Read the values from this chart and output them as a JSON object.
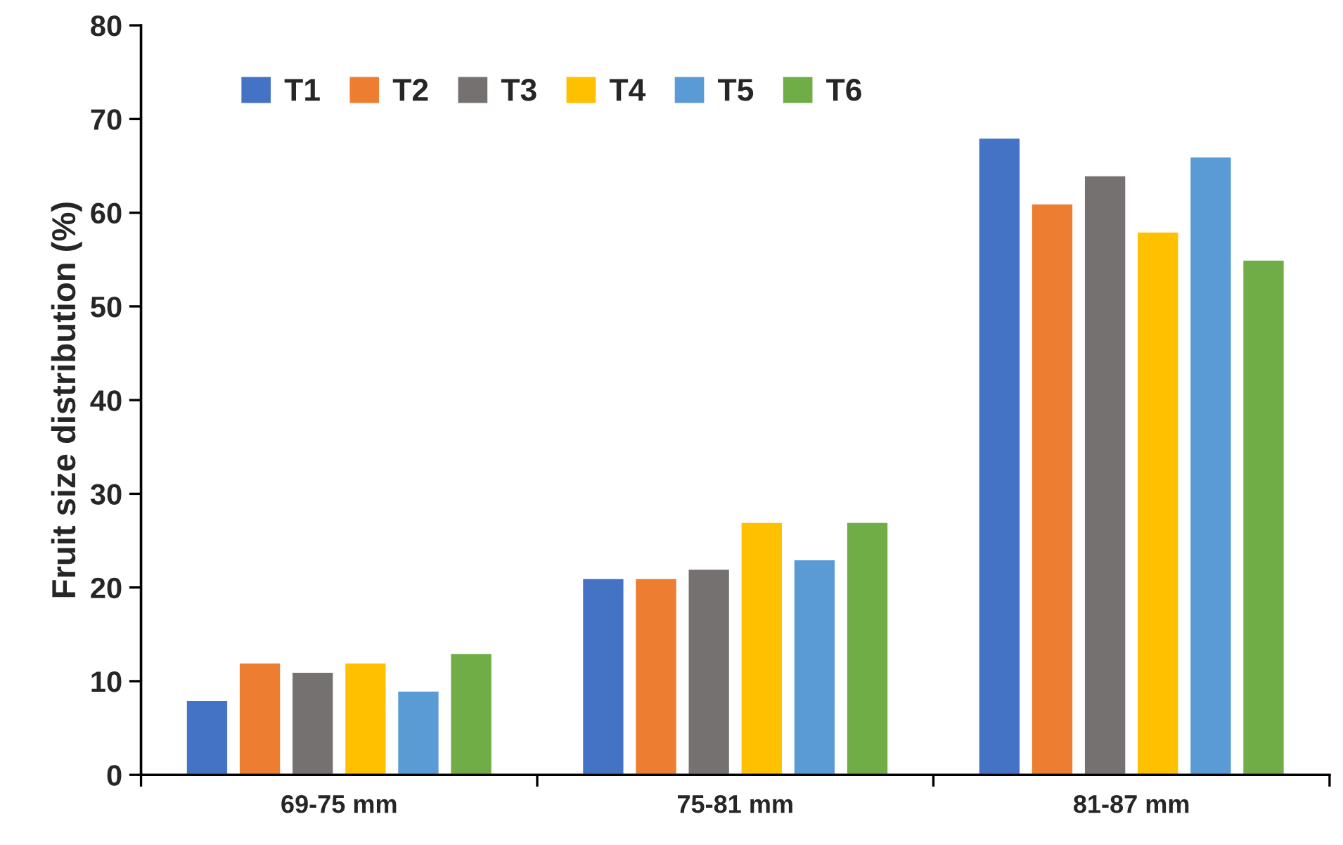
{
  "chart_data": {
    "type": "bar",
    "ylabel": "Fruit size distribution (%)",
    "categories": [
      "69-75 mm",
      "75-81 mm",
      "81-87 mm"
    ],
    "series": [
      {
        "name": "T1",
        "color": "#4472c4",
        "values": [
          8,
          21,
          68
        ]
      },
      {
        "name": "T2",
        "color": "#ed7d31",
        "values": [
          12,
          21,
          61
        ]
      },
      {
        "name": "T3",
        "color": "#767171",
        "values": [
          11,
          22,
          64
        ]
      },
      {
        "name": "T4",
        "color": "#ffc000",
        "values": [
          12,
          27,
          58
        ]
      },
      {
        "name": "T5",
        "color": "#5b9bd5",
        "values": [
          9,
          23,
          66
        ]
      },
      {
        "name": "T6",
        "color": "#70ad47",
        "values": [
          13,
          27,
          55
        ]
      }
    ],
    "ylim": [
      0,
      80
    ],
    "yticks": [
      0,
      10,
      20,
      30,
      40,
      50,
      60,
      70,
      80
    ],
    "grid": false,
    "legend": "top left"
  }
}
